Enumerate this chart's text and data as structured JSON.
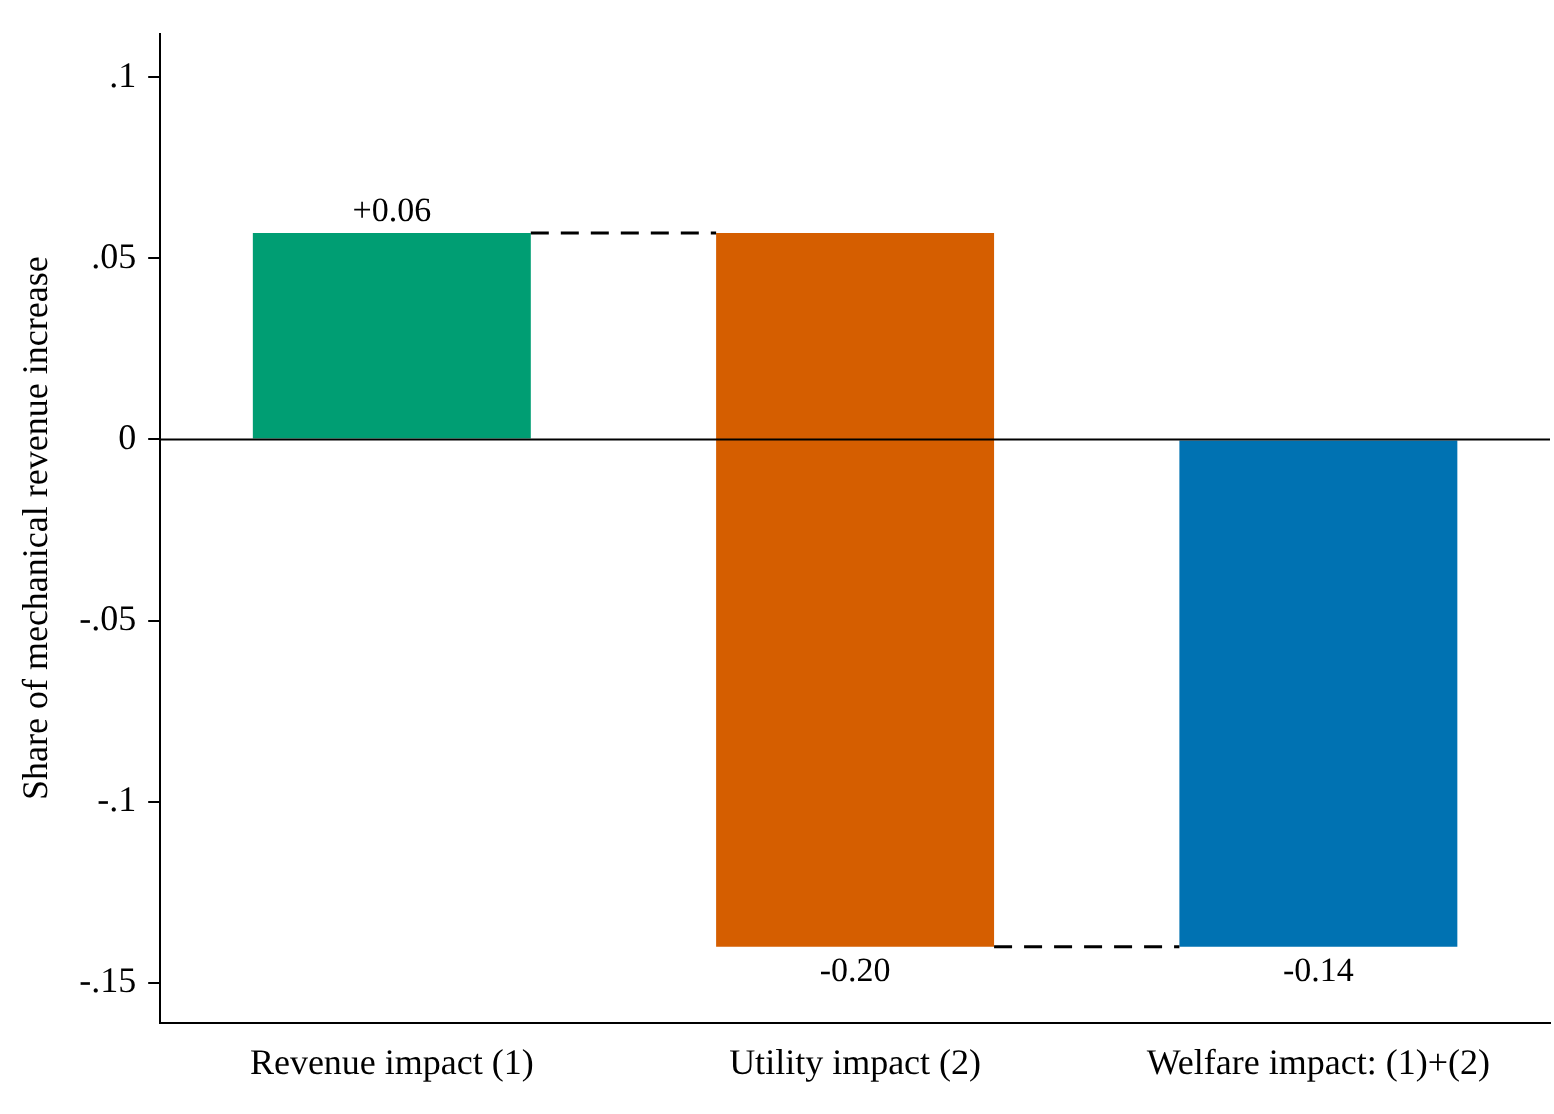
{
  "chart_data": {
    "type": "bar",
    "ylabel": "Share of mechanical revenue increase",
    "categories": [
      "Revenue impact (1)",
      "Utility impact (2)",
      "Welfare impact: (1)+(2)"
    ],
    "values": [
      0.057,
      -0.197,
      -0.14
    ],
    "base": [
      0,
      0.057,
      0
    ],
    "value_labels": [
      "+0.06",
      "-0.20",
      "-0.14"
    ],
    "colors": [
      "#009e73",
      "#d55e00",
      "#0072b2"
    ],
    "ylim": [
      -0.161,
      0.112
    ],
    "yticks": [
      {
        "value": -0.15,
        "label": "-.15"
      },
      {
        "value": -0.1,
        "label": "-.1"
      },
      {
        "value": -0.05,
        "label": "-.05"
      },
      {
        "value": 0,
        "label": "0"
      },
      {
        "value": 0.05,
        "label": ".05"
      },
      {
        "value": 0.1,
        "label": ".1"
      }
    ],
    "ref_lines": [
      {
        "axis": "y",
        "value": 0,
        "color": "#000000"
      },
      {
        "axis": "y",
        "value": 0.057,
        "color": "#000000",
        "line_style": "dashed"
      },
      {
        "axis": "y",
        "value": -0.14,
        "color": "#000000",
        "line_style": "dashed"
      }
    ],
    "grid": false,
    "legend": false
  }
}
